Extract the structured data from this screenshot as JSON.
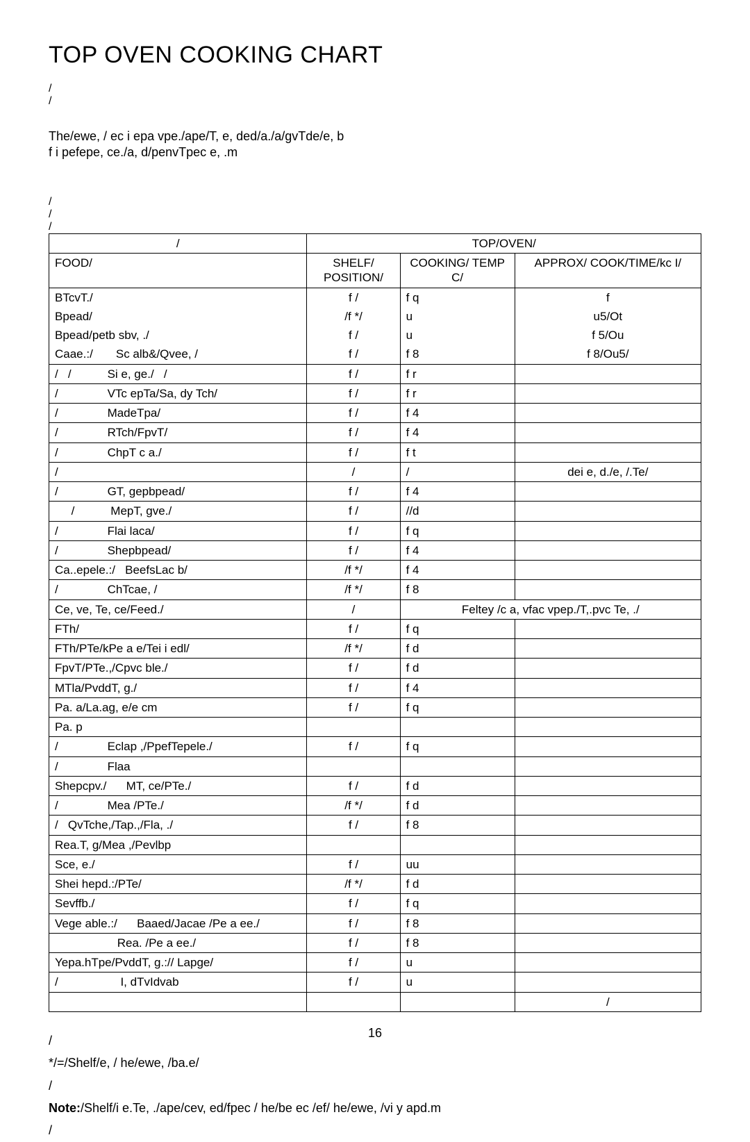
{
  "title": "TOP OVEN COOKING CHART",
  "intro_line1": "The/ewe, / ec i epa vpe./ape/T, e, ded/a./a/gvTde/e, b",
  "intro_line2": "f                              i pefepe, ce./a, d/penvTpec e, .m",
  "header": {
    "top_oven": "TOP/OVEN/",
    "food": "FOOD/",
    "shelf": "SHELF/ POSITION/",
    "temp": "COOKING/ TEMP C/",
    "time": "APPROX/ COOK/TIME/kc I/"
  },
  "rows": [
    {
      "food": "BTcvT./",
      "shelf": "f /",
      "temp": "f q",
      "time": "f"
    },
    {
      "food": "Bpead/",
      "shelf": "/f */",
      "temp": "u",
      "time": "u5/Ot"
    },
    {
      "food": "Bpead/petb sbv, ./",
      "shelf": "f /",
      "temp": "u",
      "time": "f 5/Ou"
    },
    {
      "food": "Caae.:/       Sc alb&/Qvee, /",
      "shelf": "f /",
      "temp": "f 8",
      "time": "f 8/Ou5/"
    },
    {
      "food": "/   /           Si e, ge./   /",
      "shelf": "f /",
      "temp": "f r",
      "time": ""
    },
    {
      "food": "/               VTc epTa/Sa, dy Tch/",
      "shelf": "f /",
      "temp": "f r",
      "time": ""
    },
    {
      "food": "/               MadeTpa/",
      "shelf": "f /",
      "temp": "f 4",
      "time": ""
    },
    {
      "food": "/               RTch/FpvT/",
      "shelf": "f /",
      "temp": "f 4",
      "time": ""
    },
    {
      "food": "/               ChpT c a./",
      "shelf": "f /",
      "temp": "f t",
      "time": ""
    },
    {
      "food": "/",
      "shelf": "/",
      "temp": "/",
      "time": "dei e, d./e, /.Te/"
    },
    {
      "food": "/               GT, gepbpead/",
      "shelf": "f /",
      "temp": "f 4",
      "time": ""
    },
    {
      "food": "     /           MepT, gve./",
      "shelf": "f /",
      "temp": "//d",
      "time": ""
    },
    {
      "food": "/               Flai laca/",
      "shelf": "f /",
      "temp": "f q",
      "time": ""
    },
    {
      "food": "/               Shepbpead/",
      "shelf": "f /",
      "temp": "f 4",
      "time": ""
    },
    {
      "food": "Ca..epele.:/   BeefsLac b/",
      "shelf": "/f */",
      "temp": "f 4",
      "time": ""
    },
    {
      "food": "/               ChTcae, /",
      "shelf": "/f */",
      "temp": "f 8",
      "time": ""
    },
    {
      "food": "Ce, ve, Te, ce/Feed./",
      "shelf": "/",
      "temp_colspan": "Feltey /c a, vfac vpep./T,.pvc Te, ./",
      "time": ""
    },
    {
      "food": "FTh/",
      "shelf": "f /",
      "temp": "f q",
      "time": ""
    },
    {
      "food": "FTh/PTe/kPe a e/Tei i edl/",
      "shelf": "/f */",
      "temp": "f d",
      "time": ""
    },
    {
      "food": "FpvT/PTe.,/Cpvc ble./",
      "shelf": "f /",
      "temp": "f d",
      "time": ""
    },
    {
      "food": "MTla/PvddT, g./",
      "shelf": "f /",
      "temp": "f 4",
      "time": ""
    },
    {
      "food": "Pa. a/La.ag, e/e cm",
      "shelf": "f /",
      "temp": "f q",
      "time": ""
    },
    {
      "food": "Pa. p",
      "shelf": "",
      "temp": "",
      "time": ""
    },
    {
      "food": "/               Eclap ,/PpefTepele./",
      "shelf": "f /",
      "temp": "f q",
      "time": ""
    },
    {
      "food": "/               Flaa",
      "shelf": "",
      "temp": "",
      "time": ""
    },
    {
      "food": "Shepcpv./      MT, ce/PTe./",
      "shelf": "f /",
      "temp": "f d",
      "time": ""
    },
    {
      "food": "/               Mea /PTe./",
      "shelf": "/f */",
      "temp": "f d",
      "time": ""
    },
    {
      "food": "/   QvTche,/Tap.,/Fla, ./",
      "shelf": "f /",
      "temp": "f 8",
      "time": ""
    },
    {
      "food": "Rea.T, g/Mea ,/Pevlbp",
      "shelf": "",
      "temp": "",
      "time": ""
    },
    {
      "food": "Sce, e./",
      "shelf": "f /",
      "temp": "uu",
      "time": ""
    },
    {
      "food": "Shei hepd.:/PTe/",
      "shelf": "/f */",
      "temp": "f d",
      "time": ""
    },
    {
      "food": "Sevffb./",
      "shelf": "f /",
      "temp": "f q",
      "time": ""
    },
    {
      "food": "Vege able.:/      Baaed/Jacae /Pe a ee./",
      "shelf": "f /",
      "temp": "f 8",
      "time": ""
    },
    {
      "food": "                   Rea. /Pe a ee./",
      "shelf": "f /",
      "temp": "f 8",
      "time": ""
    },
    {
      "food": "Yepa.hTpe/PvddT, g.:// Lapge/",
      "shelf": "f /",
      "temp": "u",
      "time": ""
    },
    {
      "food": "/                   I, dTvIdvab",
      "shelf": "f /",
      "temp": "u",
      "time": ""
    }
  ],
  "footnote1": "*/=/Shelf/e, / he/ewe, /ba.e/",
  "footnote2": "Note:/Shelf/i e.Te, ./ape/cev, ed/fpec / he/be  ec /ef/ he/ewe, /vi y apd.m",
  "page_number": "16"
}
